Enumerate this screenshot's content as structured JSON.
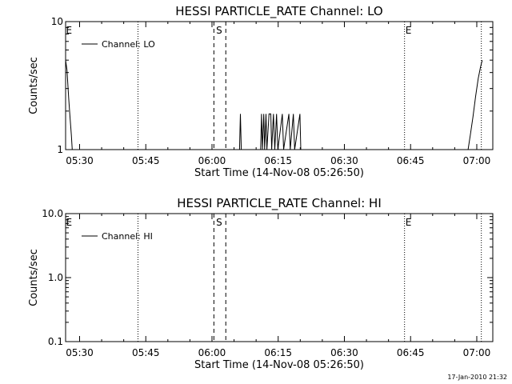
{
  "footer": {
    "timestamp": "17-Jan-2010 21:32"
  },
  "chart_data": [
    {
      "type": "line",
      "title": "HESSI PARTICLE_RATE Channel: LO",
      "xlabel": "Start Time (14-Nov-08 05:26:50)",
      "ylabel": "Counts/sec",
      "y_scale": "log",
      "ylim": [
        1,
        10
      ],
      "yticks": [
        1,
        10
      ],
      "ytick_labels": [
        "1",
        "10"
      ],
      "x_unit": "minutes past 05:26:50",
      "xlim": [
        0,
        96.8
      ],
      "xticks": [
        3.17,
        18.17,
        33.17,
        48.17,
        63.17,
        78.17,
        93.17
      ],
      "xtick_labels": [
        "05:30",
        "05:45",
        "06:00",
        "06:15",
        "06:30",
        "06:45",
        "07:00"
      ],
      "legend": {
        "position": "top-left",
        "entries": [
          "Channel: LO"
        ]
      },
      "vlines": [
        {
          "x": 16.4,
          "style": "dotted"
        },
        {
          "x": 33.6,
          "style": "dashed"
        },
        {
          "x": 36.3,
          "style": "dashed"
        },
        {
          "x": 76.8,
          "style": "dotted"
        },
        {
          "x": 94.2,
          "style": "dotted"
        }
      ],
      "annotations": [
        {
          "text": "E",
          "x": 0.1
        },
        {
          "text": "S",
          "x": 34.1
        },
        {
          "text": "E",
          "x": 77.0
        }
      ],
      "series": [
        {
          "name": "Channel: LO",
          "segments": [
            [
              [
                0.0,
                5.0
              ],
              [
                0.3,
                4.2
              ],
              [
                0.7,
                2.5
              ],
              [
                1.0,
                1.8
              ],
              [
                1.3,
                1.3
              ],
              [
                1.5,
                1.0
              ]
            ],
            [
              [
                39.4,
                1.0
              ],
              [
                39.6,
                1.9
              ],
              [
                39.8,
                1.0
              ]
            ],
            [
              [
                44.2,
                1.0
              ],
              [
                44.4,
                1.9
              ],
              [
                44.6,
                1.0
              ],
              [
                44.9,
                1.9
              ],
              [
                45.1,
                1.0
              ],
              [
                45.4,
                1.9
              ],
              [
                45.6,
                1.0
              ],
              [
                46.1,
                1.9
              ],
              [
                46.5,
                1.9
              ],
              [
                46.7,
                1.0
              ],
              [
                47.1,
                1.9
              ],
              [
                47.4,
                1.0
              ],
              [
                47.8,
                1.9
              ],
              [
                48.1,
                1.0
              ],
              [
                49.1,
                1.9
              ],
              [
                49.4,
                1.0
              ],
              [
                50.6,
                1.9
              ],
              [
                50.9,
                1.0
              ],
              [
                51.6,
                1.9
              ],
              [
                51.9,
                1.0
              ],
              [
                53.1,
                1.9
              ],
              [
                53.3,
                1.0
              ]
            ],
            [
              [
                91.2,
                1.0
              ],
              [
                91.7,
                1.3
              ],
              [
                92.3,
                1.8
              ],
              [
                92.9,
                2.6
              ],
              [
                93.5,
                3.6
              ],
              [
                94.0,
                4.4
              ],
              [
                94.4,
                5.0
              ]
            ]
          ]
        }
      ]
    },
    {
      "type": "line",
      "title": "HESSI PARTICLE_RATE Channel: HI",
      "xlabel": "Start Time (14-Nov-08 05:26:50)",
      "ylabel": "Counts/sec",
      "y_scale": "log",
      "ylim": [
        0.1,
        10
      ],
      "yticks": [
        0.1,
        1,
        10
      ],
      "ytick_labels": [
        "0.1",
        "1.0",
        "10.0"
      ],
      "x_unit": "minutes past 05:26:50",
      "xlim": [
        0,
        96.8
      ],
      "xticks": [
        3.17,
        18.17,
        33.17,
        48.17,
        63.17,
        78.17,
        93.17
      ],
      "xtick_labels": [
        "05:30",
        "05:45",
        "06:00",
        "06:15",
        "06:30",
        "06:45",
        "07:00"
      ],
      "legend": {
        "position": "top-left",
        "entries": [
          "Channel: HI"
        ]
      },
      "vlines": [
        {
          "x": 16.4,
          "style": "dotted"
        },
        {
          "x": 33.6,
          "style": "dashed"
        },
        {
          "x": 36.3,
          "style": "dashed"
        },
        {
          "x": 76.8,
          "style": "dotted"
        },
        {
          "x": 94.2,
          "style": "dotted"
        }
      ],
      "annotations": [
        {
          "text": "E",
          "x": 0.1
        },
        {
          "text": "S",
          "x": 34.1
        },
        {
          "text": "E",
          "x": 77.0
        }
      ],
      "series": [
        {
          "name": "Channel: HI",
          "segments": []
        }
      ]
    }
  ]
}
